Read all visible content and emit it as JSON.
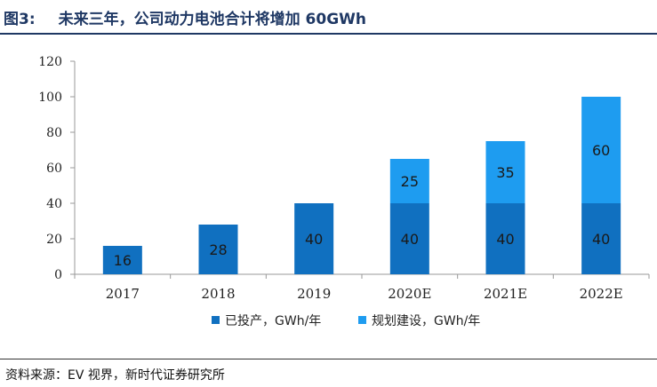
{
  "header": {
    "figure_label": "图3:",
    "title": "未来三年，公司动力电池合计将增加 60GWh"
  },
  "footer": {
    "source": "资料来源：EV 视界，新时代证券研究所"
  },
  "chart_data": {
    "type": "bar",
    "stacked": true,
    "title": "",
    "xlabel": "",
    "ylabel": "",
    "categories": [
      "2017",
      "2018",
      "2019",
      "2020E",
      "2021E",
      "2022E"
    ],
    "ylim": [
      0,
      120
    ],
    "yticks": [
      0,
      20,
      40,
      60,
      80,
      100,
      120
    ],
    "grid": false,
    "legend_position": "bottom",
    "series": [
      {
        "name": "已投产，GWh/年",
        "values": [
          16,
          28,
          40,
          40,
          40,
          40
        ],
        "color": "#1070c0"
      },
      {
        "name": "规划建设，GWh/年",
        "values": [
          null,
          null,
          null,
          25,
          35,
          60
        ],
        "color": "#1e9cf0"
      }
    ]
  }
}
